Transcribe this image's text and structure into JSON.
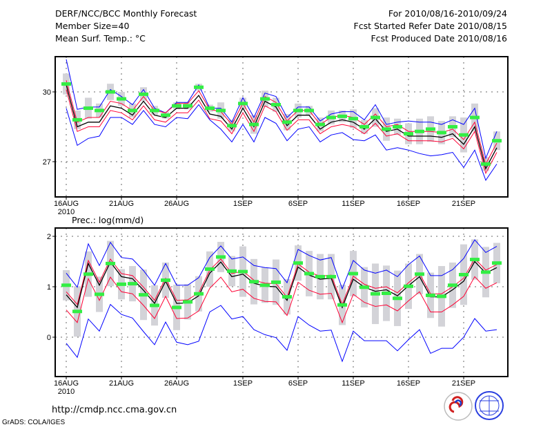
{
  "header": {
    "title": "DERF/NCC/BCC Monthly Forecast",
    "member_size": "Member Size=40",
    "variable": "Mean Surf. Temp.: °C",
    "forecast_range": "For 2010/08/16-2010/09/24",
    "start_refer": "Fcst Started Refer Date 2010/08/15",
    "produced": "Fcst Produced Date 2010/08/16"
  },
  "footer": {
    "url": "http://cmdp.ncc.cma.gov.cn",
    "credit": "GrADS: COLA/IGES",
    "logo_bcc": "BCC",
    "logo_ncc": "NCC"
  },
  "colors": {
    "max_min": "#0000ff",
    "band": "#ff0033",
    "mean": "#000000",
    "marker": "#33ee44",
    "box": "#d3d3d8",
    "grid": "#666666"
  },
  "chart_data": [
    {
      "type": "line",
      "title": "Mean Surf. Temp.: °C",
      "x_ticks": [
        {
          "i": 0,
          "label": "16AUG"
        },
        {
          "i": 5,
          "label": "21AUG"
        },
        {
          "i": 10,
          "label": "26AUG"
        },
        {
          "i": 16,
          "label": "1SEP"
        },
        {
          "i": 21,
          "label": "6SEP"
        },
        {
          "i": 26,
          "label": "11SEP"
        },
        {
          "i": 31,
          "label": "16SEP"
        },
        {
          "i": 36,
          "label": "21SEP"
        }
      ],
      "x_year": "2010",
      "y_ticks": [
        {
          "v": 30,
          "label": "30"
        },
        {
          "v": 27,
          "label": "27"
        }
      ],
      "ylim": [
        25.5,
        31.5
      ],
      "grid": true,
      "series": {
        "max": [
          31.4,
          29.25,
          29.35,
          29.35,
          30.1,
          29.8,
          29.45,
          30.1,
          29.3,
          29.1,
          29.55,
          29.55,
          30.3,
          29.3,
          29.3,
          28.7,
          29.75,
          28.9,
          29.95,
          29.8,
          28.9,
          29.35,
          29.35,
          28.75,
          29.05,
          29.15,
          29.15,
          28.8,
          29.45,
          28.6,
          28.7,
          28.75,
          28.7,
          28.7,
          28.6,
          28.8,
          28.6,
          29.3,
          27.15,
          28.3
        ],
        "mean": [
          30.3,
          28.5,
          28.7,
          28.7,
          29.4,
          29.3,
          29.0,
          29.6,
          29.0,
          28.9,
          29.3,
          29.3,
          29.85,
          29.05,
          28.95,
          28.4,
          29.3,
          28.5,
          29.6,
          29.35,
          28.55,
          29.0,
          29.0,
          28.4,
          28.7,
          28.8,
          28.7,
          28.4,
          28.85,
          28.3,
          28.4,
          28.1,
          28.1,
          28.1,
          28.05,
          28.2,
          27.75,
          28.5,
          26.7,
          27.6
        ],
        "min": [
          29.3,
          27.7,
          28.0,
          28.1,
          28.9,
          28.9,
          28.6,
          29.2,
          28.6,
          28.5,
          28.9,
          28.85,
          29.45,
          28.8,
          28.4,
          27.85,
          28.6,
          27.85,
          28.9,
          28.65,
          27.9,
          28.4,
          28.5,
          27.85,
          28.15,
          28.25,
          27.95,
          27.9,
          28.15,
          27.5,
          27.6,
          27.5,
          27.35,
          27.25,
          27.3,
          27.4,
          26.75,
          27.5,
          26.2,
          26.9
        ],
        "marker": [
          30.34,
          28.8,
          29.3,
          29.2,
          30.0,
          29.7,
          29.2,
          29.9,
          29.2,
          29.0,
          29.4,
          29.4,
          30.2,
          29.3,
          29.2,
          28.55,
          29.5,
          28.6,
          29.7,
          29.45,
          28.7,
          29.2,
          29.2,
          28.6,
          28.9,
          28.95,
          28.85,
          28.5,
          28.9,
          28.4,
          28.5,
          28.2,
          28.3,
          28.4,
          28.25,
          28.5,
          28.15,
          28.9,
          26.9,
          27.9
        ],
        "band_upper_offset": 0.2,
        "band_lower_offset": 0.2,
        "box_halfrange": [
          0.45,
          0.4,
          0.45,
          0.3,
          0.35,
          0.3,
          0.3,
          0.3,
          0.2,
          0.15,
          0.15,
          0.15,
          0.15,
          0.15,
          0.35,
          0.25,
          0.25,
          0.4,
          0.35,
          0.3,
          0.35,
          0.3,
          0.2,
          0.3,
          0.3,
          0.25,
          0.4,
          0.3,
          0.4,
          0.5,
          0.35,
          0.45,
          0.55,
          0.55,
          0.5,
          0.45,
          0.75,
          0.6,
          0.3,
          0.4
        ]
      }
    },
    {
      "type": "line",
      "title": "Prec.: log(mm/d)",
      "x_ticks": [
        {
          "i": 0,
          "label": "16AUG"
        },
        {
          "i": 5,
          "label": "21AUG"
        },
        {
          "i": 10,
          "label": "26AUG"
        },
        {
          "i": 16,
          "label": "1SEP"
        },
        {
          "i": 21,
          "label": "6SEP"
        },
        {
          "i": 26,
          "label": "11SEP"
        },
        {
          "i": 31,
          "label": "16SEP"
        },
        {
          "i": 36,
          "label": "21SEP"
        }
      ],
      "x_year": "2010",
      "y_ticks": [
        {
          "v": 2,
          "label": "2"
        },
        {
          "v": 1,
          "label": "1"
        },
        {
          "v": 0,
          "label": "0"
        }
      ],
      "ylim": [
        -0.78,
        2.22
      ],
      "grid": true,
      "series": {
        "max": [
          1.27,
          0.99,
          1.85,
          1.42,
          1.88,
          1.58,
          1.55,
          1.32,
          1.03,
          1.46,
          1.03,
          1.03,
          1.18,
          1.58,
          1.81,
          1.55,
          1.59,
          1.42,
          1.38,
          1.36,
          1.08,
          1.74,
          1.62,
          1.53,
          1.58,
          0.96,
          1.52,
          1.33,
          1.27,
          1.33,
          1.2,
          1.44,
          1.61,
          1.22,
          1.22,
          1.34,
          1.56,
          1.93,
          1.68,
          1.8
        ],
        "mean": [
          0.84,
          0.59,
          1.46,
          1.03,
          1.49,
          1.2,
          1.16,
          0.93,
          0.67,
          1.11,
          0.67,
          0.68,
          0.82,
          1.27,
          1.49,
          1.2,
          1.25,
          1.07,
          1.01,
          1.0,
          0.73,
          1.39,
          1.23,
          1.15,
          1.17,
          0.59,
          1.15,
          0.99,
          0.91,
          0.94,
          0.82,
          1.02,
          1.2,
          0.8,
          0.8,
          0.94,
          1.11,
          1.5,
          1.27,
          1.38
        ],
        "min": [
          -0.12,
          -0.4,
          0.36,
          0.12,
          0.65,
          0.45,
          0.38,
          0.11,
          -0.15,
          0.3,
          -0.1,
          -0.15,
          -0.08,
          0.5,
          0.63,
          0.36,
          0.41,
          0.15,
          0.05,
          -0.01,
          -0.26,
          0.41,
          0.24,
          0.12,
          0.14,
          -0.48,
          0.12,
          -0.07,
          -0.07,
          -0.07,
          -0.27,
          -0.05,
          0.15,
          -0.32,
          -0.22,
          -0.22,
          0.0,
          0.37,
          0.12,
          0.15
        ],
        "marker": [
          1.03,
          0.51,
          1.25,
          0.85,
          1.46,
          1.05,
          1.06,
          0.84,
          0.63,
          1.13,
          0.59,
          0.7,
          0.86,
          1.35,
          1.59,
          1.31,
          1.3,
          1.1,
          1.03,
          1.09,
          0.8,
          1.47,
          1.26,
          1.2,
          1.2,
          0.64,
          1.26,
          0.99,
          0.86,
          0.87,
          0.77,
          1.01,
          1.25,
          0.83,
          0.81,
          1.03,
          1.24,
          1.54,
          1.29,
          1.47
        ],
        "band_upper_offset": 0.06,
        "band_lower_offset": 0.3,
        "box_halfrange": [
          0.3,
          0.5,
          0.45,
          0.35,
          0.45,
          0.3,
          0.35,
          0.5,
          0.4,
          0.35,
          0.45,
          0.35,
          0.35,
          0.35,
          0.3,
          0.3,
          0.5,
          0.45,
          0.35,
          0.45,
          0.35,
          0.35,
          0.45,
          0.45,
          0.45,
          0.4,
          0.45,
          0.4,
          0.6,
          0.55,
          0.55,
          0.45,
          0.4,
          0.45,
          0.6,
          0.45,
          0.6,
          0.4,
          0.5,
          0.4
        ]
      }
    }
  ]
}
